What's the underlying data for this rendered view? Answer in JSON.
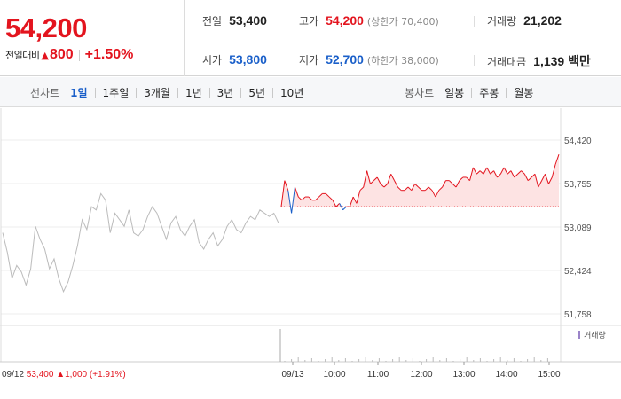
{
  "quote": {
    "price": "54,200",
    "change_label": "전일대비",
    "change_arrow": "▲",
    "change_value": "800",
    "change_rate": "+1.50%"
  },
  "stats": {
    "prev_close": {
      "label": "전일",
      "value": "53,400"
    },
    "high": {
      "label": "고가",
      "value": "54,200",
      "sub": "(상한가 70,400)"
    },
    "volume": {
      "label": "거래량",
      "value": "21,202"
    },
    "open": {
      "label": "시가",
      "value": "53,800"
    },
    "low": {
      "label": "저가",
      "value": "52,700",
      "sub": "(하한가 38,000)"
    },
    "amount": {
      "label": "거래대금",
      "value": "1,139 백만"
    }
  },
  "period_tabs": {
    "label": "선차트",
    "items": [
      "1일",
      "1주일",
      "3개월",
      "1년",
      "3년",
      "5년",
      "10년"
    ],
    "active": "1일"
  },
  "candle_tabs": {
    "label": "봉차트",
    "items": [
      "일봉",
      "주봉",
      "월봉"
    ]
  },
  "colors": {
    "up": "#e3141e",
    "down": "#1a5fc9",
    "prev_line": "#bbbbbb",
    "up_fill": "#fde3e3"
  },
  "chart_data": {
    "type": "line",
    "y_ticks": [
      "54,420",
      "53,755",
      "53,089",
      "52,424",
      "51,758"
    ],
    "ylim": [
      51758,
      54420
    ],
    "baseline": 53400,
    "x_ticks": [
      "09/13",
      "10:00",
      "11:00",
      "12:00",
      "13:00",
      "14:00",
      "15:00"
    ],
    "prev_day_info": {
      "date": "09/12",
      "close": "53,400",
      "arrow": "▲",
      "change": "1,000",
      "rate": "(+1.91%)"
    },
    "volume_label": "거래량",
    "prev_day_series": [
      53000,
      52700,
      52300,
      52500,
      52400,
      52200,
      52450,
      53100,
      52900,
      52750,
      52450,
      52600,
      52300,
      52100,
      52250,
      52500,
      52800,
      53200,
      53050,
      53400,
      53350,
      53600,
      53500,
      53000,
      53300,
      53200,
      53100,
      53350,
      53000,
      52950,
      53050,
      53250,
      53400,
      53300,
      53100,
      52900,
      53150,
      53250,
      53050,
      52950,
      53100,
      53200,
      52850,
      52750,
      52900,
      53000,
      52800,
      52900,
      53100,
      53200,
      53050,
      53000,
      53150,
      53250,
      53200,
      53350,
      53300,
      53250,
      53300,
      53150
    ],
    "today_series": [
      53400,
      53800,
      53650,
      53300,
      53700,
      53550,
      53500,
      53550,
      53550,
      53500,
      53500,
      53550,
      53600,
      53600,
      53550,
      53500,
      53400,
      53450,
      53350,
      53400,
      53400,
      53550,
      53450,
      53650,
      53700,
      53950,
      53750,
      53800,
      53850,
      53750,
      53700,
      53750,
      53900,
      53800,
      53700,
      53650,
      53650,
      53700,
      53650,
      53750,
      53700,
      53650,
      53650,
      53700,
      53650,
      53550,
      53650,
      53700,
      53800,
      53800,
      53750,
      53700,
      53800,
      53850,
      53850,
      53800,
      54000,
      53900,
      53950,
      53900,
      54000,
      53900,
      53950,
      53850,
      53900,
      54000,
      53900,
      53950,
      53850,
      53900,
      53950,
      53900,
      53800,
      53850,
      53900,
      53700,
      53800,
      53900,
      53750,
      53850,
      54050,
      54200
    ]
  }
}
